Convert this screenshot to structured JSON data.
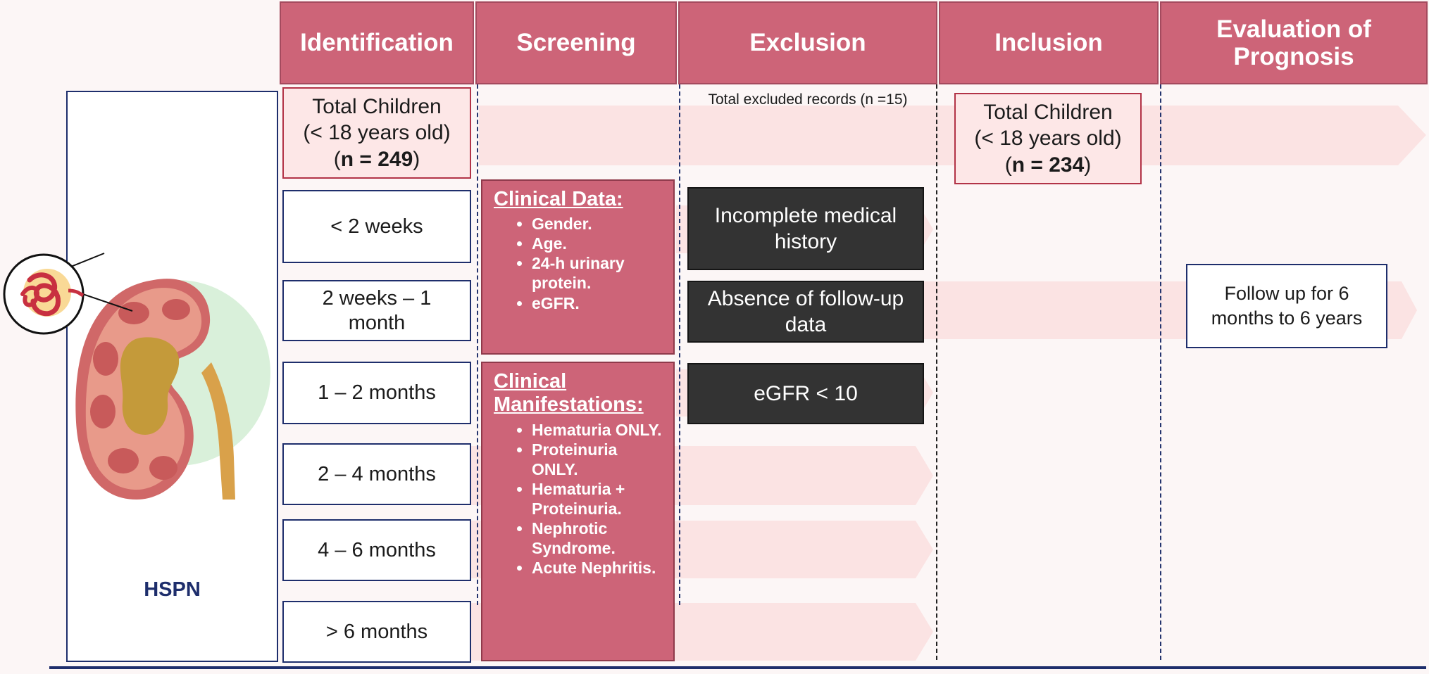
{
  "headers": {
    "identification": "Identification",
    "screening": "Screening",
    "exclusion": "Exclusion",
    "inclusion": "Inclusion",
    "evaluation": "Evaluation of Prognosis"
  },
  "panel": {
    "label": "HSPN"
  },
  "identification": {
    "total": {
      "line1": "Total Children",
      "line2": "(< 18 years old)",
      "n_prefix": "(",
      "n_value": "n = 249",
      "n_suffix": ")"
    },
    "durations": [
      "< 2 weeks",
      "2 weeks – 1 month",
      "1 – 2 months",
      "2 – 4 months",
      "4 – 6 months",
      "> 6 months"
    ]
  },
  "screening": {
    "clinical_data": {
      "title": "Clinical Data:",
      "items": [
        "Gender.",
        "Age.",
        "24-h urinary protein.",
        "eGFR."
      ]
    },
    "clinical_manifestations": {
      "title": "Clinical Manifestations:",
      "items": [
        "Hematuria ONLY.",
        "Proteinuria ONLY.",
        "Hematuria + Proteinuria.",
        "Nephrotic Syndrome.",
        "Acute Nephritis."
      ]
    }
  },
  "exclusion": {
    "total_label": "Total excluded records (n =15)",
    "reasons": [
      "Incomplete medical history",
      "Absence of follow-up data",
      "eGFR < 10"
    ]
  },
  "inclusion": {
    "total": {
      "line1": "Total Children",
      "line2": "(< 18 years old)",
      "n_prefix": "(",
      "n_value": "n = 234",
      "n_suffix": ")"
    }
  },
  "evaluation": {
    "follow_up": "Follow up for 6 months to 6 years"
  },
  "colors": {
    "header": "#cd6478",
    "band": "#fbe3e3",
    "dark_box": "#333333",
    "navy": "#1e2e6c",
    "red_border": "#b23347"
  }
}
